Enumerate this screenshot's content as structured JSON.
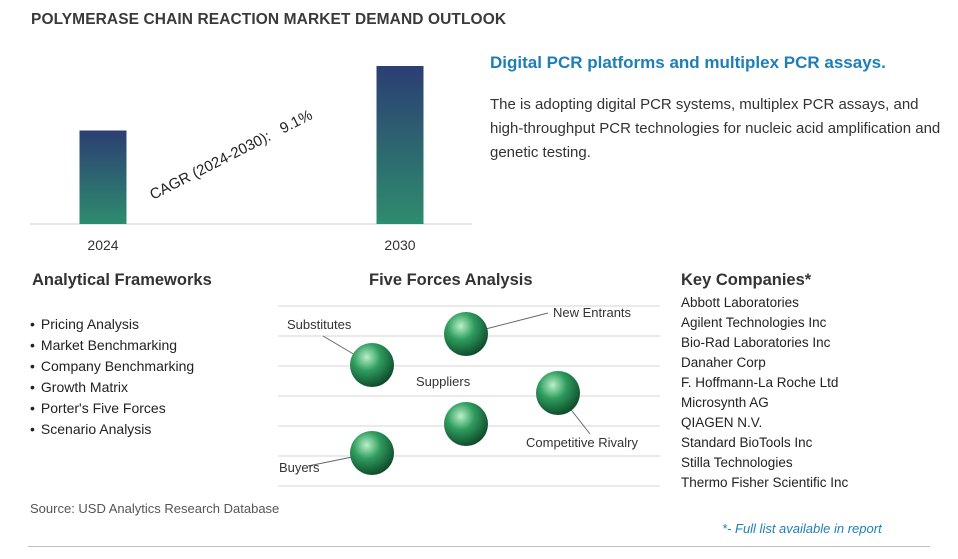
{
  "page": {
    "title": "POLYMERASE CHAIN REACTION MARKET DEMAND OUTLOOK",
    "source": "Source: USD Analytics Research Database",
    "footnote": "*- Full list available in report"
  },
  "chart_data": {
    "type": "bar",
    "categories": [
      "2024",
      "2030"
    ],
    "values": [
      1.0,
      1.69
    ],
    "title": "",
    "xlabel": "",
    "ylabel": "",
    "grid": false,
    "annotation": "CAGR (2024-2030):   9.1%",
    "colors": {
      "bar_top": "#2c3e73",
      "bar_bottom": "#2e8c6e"
    }
  },
  "highlight": {
    "headline": "Digital PCR platforms and multiplex PCR assays.",
    "description": "The is adopting digital PCR systems, multiplex PCR assays, and high-throughput PCR technologies for nucleic acid amplification and genetic testing."
  },
  "frameworks": {
    "title": "Analytical Frameworks",
    "items": [
      "Pricing Analysis",
      "Market Benchmarking",
      "Company Benchmarking",
      "Growth Matrix",
      "Porter's Five Forces",
      "Scenario Analysis"
    ]
  },
  "five_forces": {
    "title": "Five Forces Analysis",
    "labels": {
      "substitutes": "Substitutes",
      "new_entrants": "New Entrants",
      "suppliers": "Suppliers",
      "competitive_rivalry": "Competitive Rivalry",
      "buyers": "Buyers"
    },
    "sphere_color": "#2e9c5e"
  },
  "companies": {
    "title": "Key Companies*",
    "items": [
      "Abbott Laboratories",
      "Agilent Technologies Inc",
      "Bio-Rad Laboratories Inc",
      "Danaher Corp",
      "F. Hoffmann-La Roche Ltd",
      "Microsynth AG",
      "QIAGEN N.V.",
      "Standard BioTools Inc",
      "Stilla Technologies",
      "Thermo Fisher Scientific Inc"
    ]
  }
}
